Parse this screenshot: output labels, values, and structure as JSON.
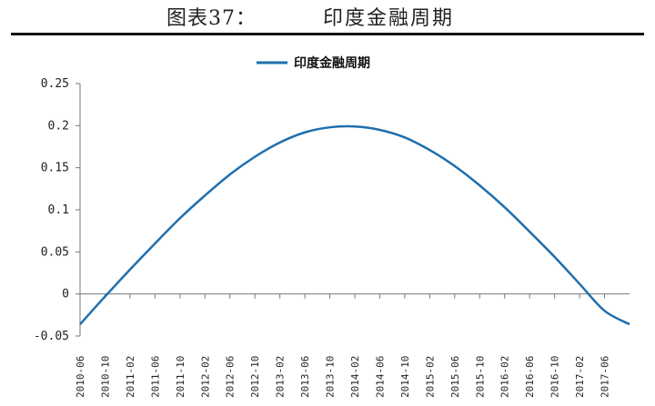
{
  "header": {
    "figure_label": "图表37：",
    "figure_title": "印度金融周期"
  },
  "chart_data": {
    "type": "line",
    "title": "",
    "xlabel": "",
    "ylabel": "",
    "ylim": [
      -0.05,
      0.25
    ],
    "y_ticks": [
      -0.05,
      0,
      0.05,
      0.1,
      0.15,
      0.2,
      0.25
    ],
    "y_tick_labels": [
      "-0.05",
      "0",
      "0.05",
      "0.1",
      "0.15",
      "0.2",
      "0.25"
    ],
    "x_tick_labels": [
      "2010-06",
      "2010-10",
      "2011-02",
      "2011-06",
      "2011-10",
      "2012-02",
      "2012-06",
      "2012-10",
      "2013-02",
      "2013-06",
      "2013-10",
      "2014-02",
      "2014-06",
      "2014-10",
      "2015-02",
      "2015-06",
      "2015-10",
      "2016-02",
      "2016-06",
      "2016-10",
      "2017-02",
      "2017-06"
    ],
    "x_range": [
      "2010-06",
      "2017-10"
    ],
    "grid": false,
    "legend_position": "top-center",
    "series": [
      {
        "name": "印度金融周期",
        "color": "#1f6fae",
        "x": [
          "2010-06",
          "2010-10",
          "2011-02",
          "2011-06",
          "2011-10",
          "2012-02",
          "2012-06",
          "2012-10",
          "2013-02",
          "2013-06",
          "2013-10",
          "2014-02",
          "2014-06",
          "2014-10",
          "2015-02",
          "2015-06",
          "2015-10",
          "2016-02",
          "2016-06",
          "2016-10",
          "2017-02",
          "2017-06",
          "2017-10"
        ],
        "values": [
          -0.036,
          -0.003,
          0.029,
          0.06,
          0.09,
          0.117,
          0.142,
          0.163,
          0.18,
          0.192,
          0.198,
          0.199,
          0.195,
          0.186,
          0.171,
          0.152,
          0.129,
          0.103,
          0.074,
          0.044,
          0.012,
          -0.02,
          -0.036
        ]
      }
    ]
  }
}
